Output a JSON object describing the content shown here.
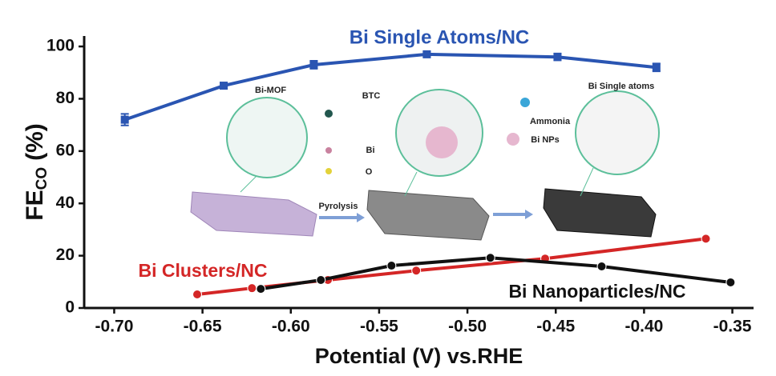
{
  "chart_data": {
    "type": "line",
    "xlabel": "Potential (V) vs.RHE",
    "ylabel": [
      "FE",
      "CO",
      "(%)"
    ],
    "xlim": [
      -0.717,
      -0.338
    ],
    "ylim": [
      0,
      104
    ],
    "xticks": [
      {
        "value": -0.7,
        "label": "-0.70"
      },
      {
        "value": -0.65,
        "label": "-0.65"
      },
      {
        "value": -0.6,
        "label": "-0.60"
      },
      {
        "value": -0.55,
        "label": "-0.55"
      },
      {
        "value": -0.5,
        "label": "-0.50"
      },
      {
        "value": -0.45,
        "label": "-0.45"
      },
      {
        "value": -0.4,
        "label": "-0.40"
      },
      {
        "value": -0.35,
        "label": "-0.35"
      }
    ],
    "yticks": [
      0,
      20,
      40,
      60,
      80,
      100
    ],
    "series": [
      {
        "name": "Bi Single Atoms/NC",
        "color": "#2a55b2",
        "x": [
          -0.694,
          -0.638,
          -0.587,
          -0.523,
          -0.449,
          -0.393
        ],
        "values": [
          72,
          85,
          93,
          97,
          96,
          92
        ],
        "errors": [
          2.2,
          1.2,
          1.5,
          1.0,
          1.3,
          1.5
        ]
      },
      {
        "name": "Bi Clusters/NC",
        "color": "#d42626",
        "x": [
          -0.653,
          -0.622,
          -0.579,
          -0.529,
          -0.456,
          -0.365
        ],
        "values": [
          5.2,
          7.6,
          10.7,
          14.3,
          18.9,
          26.5
        ]
      },
      {
        "name": "Bi Nanoparticles/NC",
        "color": "#111111",
        "x": [
          -0.617,
          -0.583,
          -0.543,
          -0.487,
          -0.424,
          -0.351
        ],
        "values": [
          7.3,
          10.7,
          16.2,
          19.2,
          15.9,
          9.8
        ]
      }
    ],
    "inset_labels": [
      "Bi-MOF",
      "BTC",
      "Bi",
      "O",
      "Pyrolysis",
      "Ammonia",
      "Bi NPs",
      "Bi Single atoms"
    ]
  }
}
